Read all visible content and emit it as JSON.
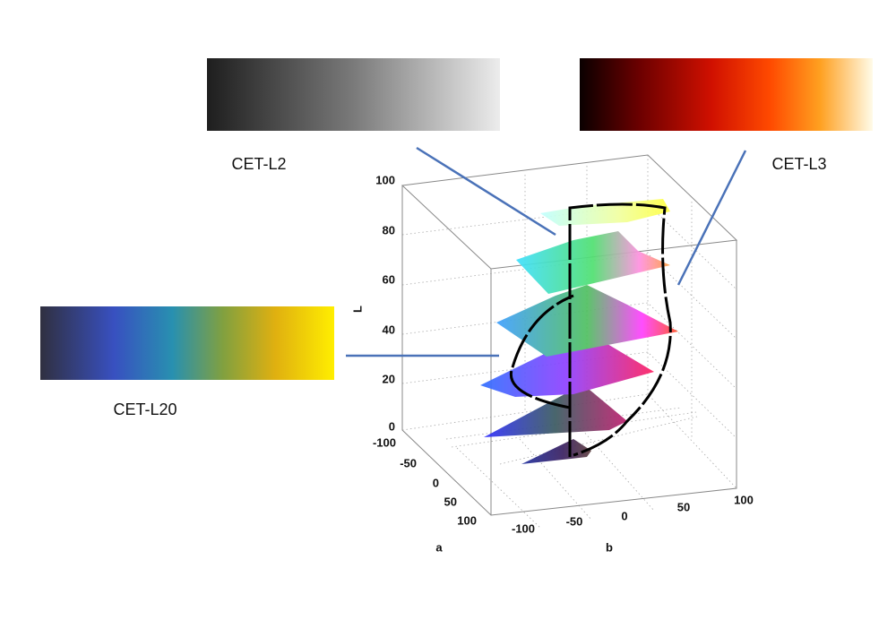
{
  "colormaps": [
    {
      "name": "CET-L2"
    },
    {
      "name": "CET-L3"
    },
    {
      "name": "CET-L20"
    }
  ],
  "axes": {
    "L": {
      "label": "L",
      "ticks": [
        0,
        20,
        40,
        60,
        80,
        100
      ]
    },
    "a": {
      "label": "a",
      "ticks": [
        -100,
        -50,
        0,
        50,
        100
      ]
    },
    "b": {
      "label": "b",
      "ticks": [
        -100,
        -50,
        0,
        50,
        100
      ]
    }
  }
}
